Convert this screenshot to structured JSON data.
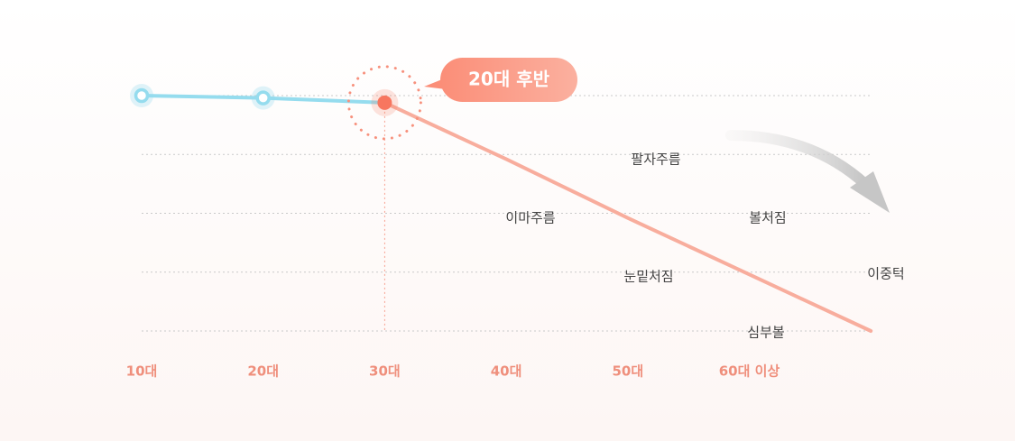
{
  "chart_data": {
    "type": "line",
    "categories": [
      "10대",
      "20대",
      "30대",
      "40대",
      "50대",
      "60대 이상",
      null
    ],
    "series": [
      {
        "color": "#95dcee",
        "values": [
          100,
          99,
          97,
          null,
          null,
          null,
          null
        ]
      },
      {
        "color": "#f8ad9d",
        "values": [
          null,
          null,
          97,
          73,
          48,
          24,
          0
        ]
      }
    ],
    "ylim": [
      0,
      100
    ],
    "yticks": [
      0,
      25,
      50,
      75,
      100
    ],
    "grid": true,
    "callout": "20대 후반",
    "annotations": [
      "팔자주름",
      "이마주름",
      "볼처짐",
      "눈밑처짐",
      "이중턱",
      "심부볼"
    ]
  }
}
